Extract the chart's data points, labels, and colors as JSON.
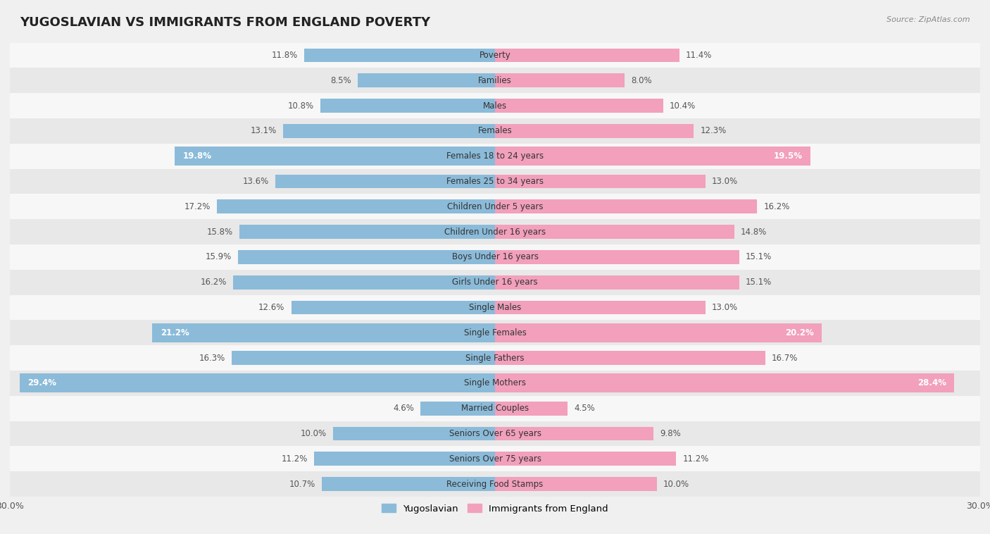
{
  "title": "YUGOSLAVIAN VS IMMIGRANTS FROM ENGLAND POVERTY",
  "source": "Source: ZipAtlas.com",
  "categories": [
    "Poverty",
    "Families",
    "Males",
    "Females",
    "Females 18 to 24 years",
    "Females 25 to 34 years",
    "Children Under 5 years",
    "Children Under 16 years",
    "Boys Under 16 years",
    "Girls Under 16 years",
    "Single Males",
    "Single Females",
    "Single Fathers",
    "Single Mothers",
    "Married Couples",
    "Seniors Over 65 years",
    "Seniors Over 75 years",
    "Receiving Food Stamps"
  ],
  "yugoslavian": [
    11.8,
    8.5,
    10.8,
    13.1,
    19.8,
    13.6,
    17.2,
    15.8,
    15.9,
    16.2,
    12.6,
    21.2,
    16.3,
    29.4,
    4.6,
    10.0,
    11.2,
    10.7
  ],
  "england": [
    11.4,
    8.0,
    10.4,
    12.3,
    19.5,
    13.0,
    16.2,
    14.8,
    15.1,
    15.1,
    13.0,
    20.2,
    16.7,
    28.4,
    4.5,
    9.8,
    11.2,
    10.0
  ],
  "color_yugoslavian": "#8bbbd9",
  "color_england": "#f2a0bc",
  "highlight_rows": [
    4,
    11,
    13
  ],
  "xlim": 30.0,
  "title_fontsize": 13,
  "legend_labels": [
    "Yugoslavian",
    "Immigrants from England"
  ],
  "background_color": "#f0f0f0",
  "row_bg_odd": "#f7f7f7",
  "row_bg_even": "#e8e8e8"
}
